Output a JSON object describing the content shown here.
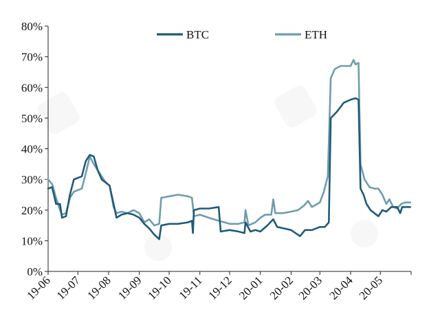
{
  "chart_data": {
    "type": "line",
    "title": "",
    "xlabel": "",
    "ylabel": "",
    "x_tick_labels": [
      "19-06",
      "19-07",
      "19-08",
      "19-09",
      "19-10",
      "19-11",
      "19-12",
      "20-01",
      "20-02",
      "20-03",
      "20-04",
      "20-05"
    ],
    "y_tick_labels": [
      "0%",
      "10%",
      "20%",
      "30%",
      "40%",
      "50%",
      "60%",
      "70%",
      "80%"
    ],
    "ylim": [
      0,
      80
    ],
    "y_unit": "%",
    "grid": false,
    "legend_placement": "top-center",
    "series": [
      {
        "name": "BTC",
        "color": "#1f5a78",
        "points": [
          [
            "2019-06-01",
            27
          ],
          [
            "2019-06-05",
            27.5
          ],
          [
            "2019-06-09",
            22
          ],
          [
            "2019-06-13",
            22
          ],
          [
            "2019-06-15",
            17.5
          ],
          [
            "2019-06-19",
            18
          ],
          [
            "2019-06-23",
            25
          ],
          [
            "2019-06-27",
            30
          ],
          [
            "2019-07-01",
            30.5
          ],
          [
            "2019-07-05",
            31
          ],
          [
            "2019-07-09",
            36
          ],
          [
            "2019-07-13",
            38
          ],
          [
            "2019-07-17",
            37.5
          ],
          [
            "2019-07-21",
            33
          ],
          [
            "2019-07-25",
            30
          ],
          [
            "2019-07-29",
            29
          ],
          [
            "2019-08-02",
            28
          ],
          [
            "2019-08-06",
            22
          ],
          [
            "2019-08-09",
            17.5
          ],
          [
            "2019-08-14",
            18.5
          ],
          [
            "2019-08-20",
            19
          ],
          [
            "2019-08-26",
            18.5
          ],
          [
            "2019-09-01",
            17.5
          ],
          [
            "2019-09-06",
            15.5
          ],
          [
            "2019-09-11",
            14
          ],
          [
            "2019-09-16",
            12
          ],
          [
            "2019-09-21",
            10.5
          ],
          [
            "2019-09-23",
            15
          ],
          [
            "2019-10-01",
            15.5
          ],
          [
            "2019-10-10",
            15.5
          ],
          [
            "2019-10-20",
            16
          ],
          [
            "2019-10-24",
            16.5
          ],
          [
            "2019-10-25",
            12.5
          ],
          [
            "2019-10-26",
            20
          ],
          [
            "2019-11-01",
            20.5
          ],
          [
            "2019-11-10",
            20.5
          ],
          [
            "2019-11-20",
            21
          ],
          [
            "2019-11-22",
            13
          ],
          [
            "2019-12-01",
            13.5
          ],
          [
            "2019-12-10",
            13
          ],
          [
            "2019-12-16",
            12.5
          ],
          [
            "2019-12-17",
            16
          ],
          [
            "2019-12-22",
            13
          ],
          [
            "2019-12-27",
            13.5
          ],
          [
            "2020-01-01",
            13
          ],
          [
            "2020-01-08",
            15
          ],
          [
            "2020-01-14",
            17
          ],
          [
            "2020-01-18",
            14.5
          ],
          [
            "2020-01-25",
            14
          ],
          [
            "2020-02-01",
            13.5
          ],
          [
            "2020-02-10",
            11.5
          ],
          [
            "2020-02-15",
            13.5
          ],
          [
            "2020-02-22",
            13.5
          ],
          [
            "2020-03-01",
            14.5
          ],
          [
            "2020-03-06",
            14.5
          ],
          [
            "2020-03-10",
            16
          ],
          [
            "2020-03-12",
            50
          ],
          [
            "2020-03-18",
            52
          ],
          [
            "2020-03-25",
            55
          ],
          [
            "2020-04-01",
            56
          ],
          [
            "2020-04-06",
            56.5
          ],
          [
            "2020-04-09",
            56
          ],
          [
            "2020-04-11",
            27
          ],
          [
            "2020-04-14",
            25
          ],
          [
            "2020-04-17",
            22
          ],
          [
            "2020-04-21",
            20
          ],
          [
            "2020-04-25",
            19
          ],
          [
            "2020-04-29",
            18
          ],
          [
            "2020-05-03",
            20
          ],
          [
            "2020-05-07",
            19.5
          ],
          [
            "2020-05-12",
            21
          ],
          [
            "2020-05-18",
            21
          ],
          [
            "2020-05-21",
            19
          ],
          [
            "2020-05-23",
            21
          ],
          [
            "2020-05-31",
            21
          ]
        ]
      },
      {
        "name": "ETH",
        "color": "#6f9cae",
        "points": [
          [
            "2019-06-01",
            30
          ],
          [
            "2019-06-05",
            28.5
          ],
          [
            "2019-06-09",
            24
          ],
          [
            "2019-06-13",
            20
          ],
          [
            "2019-06-15",
            18.5
          ],
          [
            "2019-06-19",
            19
          ],
          [
            "2019-06-23",
            24
          ],
          [
            "2019-06-27",
            26
          ],
          [
            "2019-07-01",
            26.5
          ],
          [
            "2019-07-05",
            27
          ],
          [
            "2019-07-09",
            32
          ],
          [
            "2019-07-13",
            37.5
          ],
          [
            "2019-07-17",
            35
          ],
          [
            "2019-07-21",
            33
          ],
          [
            "2019-07-25",
            31
          ],
          [
            "2019-07-29",
            29
          ],
          [
            "2019-08-02",
            28
          ],
          [
            "2019-08-06",
            21
          ],
          [
            "2019-08-09",
            19
          ],
          [
            "2019-08-14",
            19.5
          ],
          [
            "2019-08-20",
            19
          ],
          [
            "2019-08-26",
            20
          ],
          [
            "2019-09-01",
            19
          ],
          [
            "2019-09-06",
            16
          ],
          [
            "2019-09-11",
            17
          ],
          [
            "2019-09-16",
            15
          ],
          [
            "2019-09-21",
            15.5
          ],
          [
            "2019-09-23",
            24
          ],
          [
            "2019-10-01",
            24.5
          ],
          [
            "2019-10-10",
            25
          ],
          [
            "2019-10-20",
            24.5
          ],
          [
            "2019-10-24",
            24
          ],
          [
            "2019-10-26",
            18
          ],
          [
            "2019-11-01",
            18.5
          ],
          [
            "2019-11-10",
            17.5
          ],
          [
            "2019-11-20",
            16.5
          ],
          [
            "2019-11-26",
            16
          ],
          [
            "2019-12-01",
            15.5
          ],
          [
            "2019-12-10",
            15.5
          ],
          [
            "2019-12-16",
            16
          ],
          [
            "2019-12-17",
            20
          ],
          [
            "2019-12-20",
            15
          ],
          [
            "2019-12-27",
            16
          ],
          [
            "2020-01-01",
            17.5
          ],
          [
            "2020-01-06",
            18.5
          ],
          [
            "2020-01-12",
            18.5
          ],
          [
            "2020-01-14",
            23.5
          ],
          [
            "2020-01-16",
            19
          ],
          [
            "2020-01-24",
            19
          ],
          [
            "2020-02-01",
            19.5
          ],
          [
            "2020-02-08",
            20
          ],
          [
            "2020-02-14",
            21.5
          ],
          [
            "2020-02-18",
            23
          ],
          [
            "2020-02-22",
            21
          ],
          [
            "2020-03-01",
            22.5
          ],
          [
            "2020-03-05",
            26
          ],
          [
            "2020-03-09",
            31
          ],
          [
            "2020-03-12",
            63
          ],
          [
            "2020-03-16",
            66
          ],
          [
            "2020-03-22",
            67
          ],
          [
            "2020-04-01",
            67
          ],
          [
            "2020-04-04",
            69
          ],
          [
            "2020-04-06",
            67.5
          ],
          [
            "2020-04-09",
            68
          ],
          [
            "2020-04-11",
            35
          ],
          [
            "2020-04-15",
            30
          ],
          [
            "2020-04-20",
            27.5
          ],
          [
            "2020-04-25",
            27
          ],
          [
            "2020-04-29",
            27
          ],
          [
            "2020-05-03",
            25
          ],
          [
            "2020-05-07",
            22
          ],
          [
            "2020-05-10",
            23.5
          ],
          [
            "2020-05-14",
            21
          ],
          [
            "2020-05-18",
            20.5
          ],
          [
            "2020-05-22",
            22
          ],
          [
            "2020-05-26",
            22.5
          ],
          [
            "2020-05-31",
            22.5
          ]
        ]
      }
    ]
  }
}
